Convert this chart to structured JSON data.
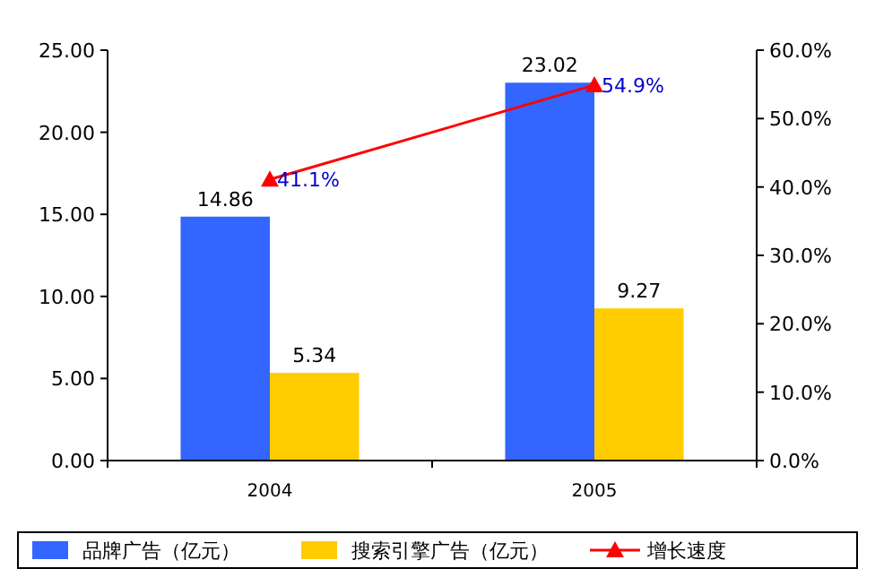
{
  "chart_data": {
    "type": "bar",
    "categories": [
      "2004",
      "2005"
    ],
    "series": [
      {
        "name": "品牌广告（亿元）",
        "color": "#3366ff",
        "values": [
          14.86,
          23.02
        ]
      },
      {
        "name": "搜索引擎广告（亿元）",
        "color": "#ffcc00",
        "values": [
          5.34,
          9.27
        ]
      },
      {
        "name": "增长速度",
        "type": "line",
        "axis": "y2",
        "color": "#ff0000",
        "values": [
          41.1,
          54.9
        ],
        "value_labels": [
          "41.1%",
          "54.9%"
        ],
        "marker": "triangle"
      }
    ],
    "ylim": [
      0,
      25
    ],
    "yticks": [
      {
        "value": 0,
        "label": "0.00"
      },
      {
        "value": 5,
        "label": "5.00"
      },
      {
        "value": 10,
        "label": "10.00"
      },
      {
        "value": 15,
        "label": "15.00"
      },
      {
        "value": 20,
        "label": "20.00"
      },
      {
        "value": 25,
        "label": "25.00"
      }
    ],
    "y2lim": [
      0,
      60
    ],
    "y2ticks": [
      {
        "value": 0,
        "label": "0.0%"
      },
      {
        "value": 10,
        "label": "10.0%"
      },
      {
        "value": 20,
        "label": "20.0%"
      },
      {
        "value": 30,
        "label": "30.0%"
      },
      {
        "value": 40,
        "label": "40.0%"
      },
      {
        "value": 50,
        "label": "50.0%"
      },
      {
        "value": 60,
        "label": "60.0%"
      }
    ],
    "data_labels": true,
    "grid": false,
    "legend": "bottom"
  }
}
